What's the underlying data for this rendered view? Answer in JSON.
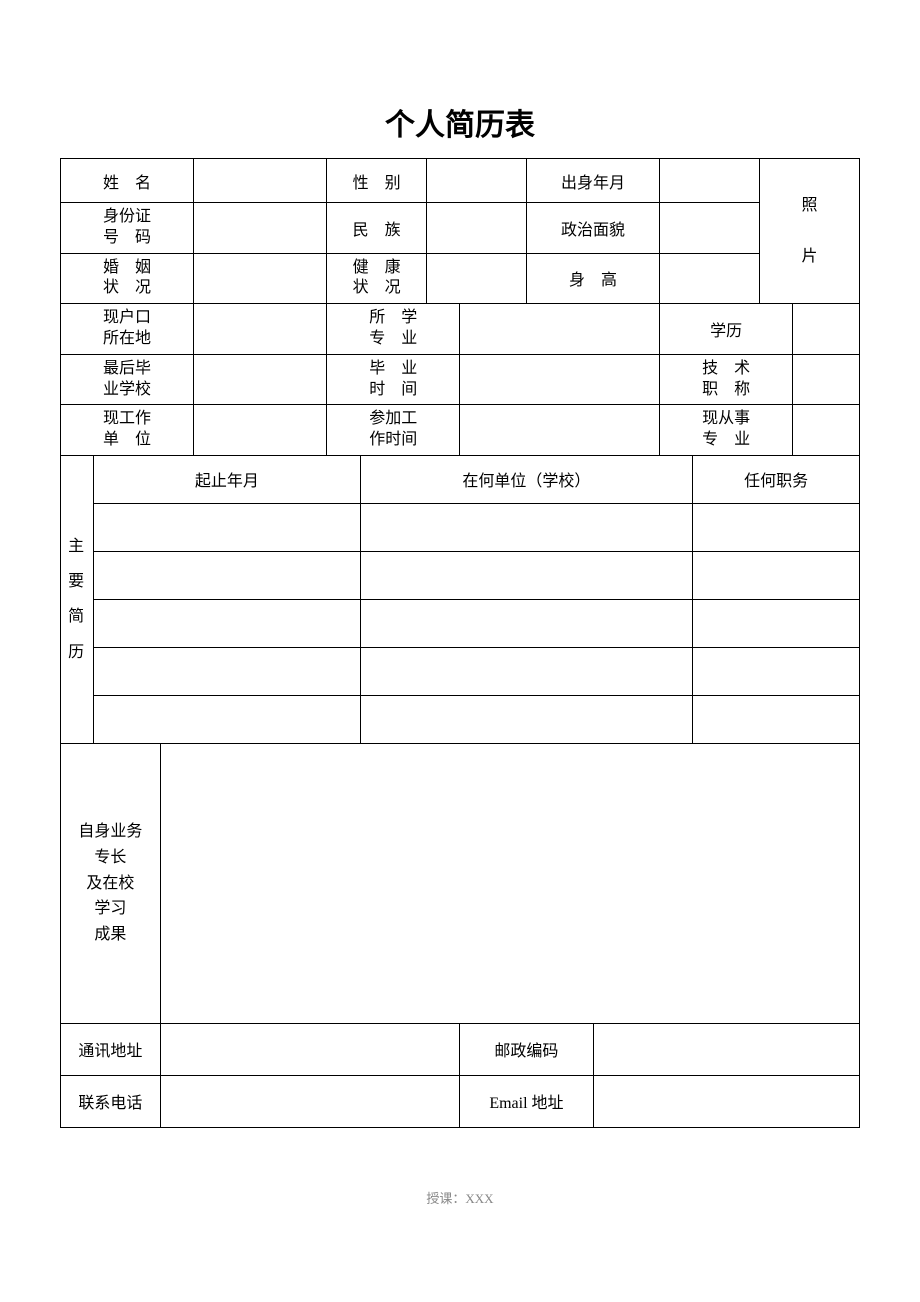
{
  "title": "个人简历表",
  "labels": {
    "name": "姓　名",
    "gender": "性　别",
    "birthdate": "出身年月",
    "photo1": "照",
    "photo2": "片",
    "idnumber": "身份证\n号　码",
    "ethnicity": "民　族",
    "political": "政治面貌",
    "marital": "婚　姻\n状　况",
    "health": "健　康\n状　况",
    "height": "身　高",
    "hukou": "现户口\n所在地",
    "major": "所　学\n专　业",
    "education": "学历",
    "school": "最后毕\n业学校",
    "gradtime": "毕　业\n时　间",
    "techTitle": "技　术\n职　称",
    "workunit": "现工作\n单　位",
    "workstart": "参加工\n作时间",
    "curmajor": "现从事\n专　业",
    "history": "主\n要\n简\n历",
    "period": "起止年月",
    "whichunit": "在何单位（学校）",
    "position": "任何职务",
    "specialty": "自身业务\n专长\n及在校\n学习\n成果",
    "address": "通讯地址",
    "postcode": "邮政编码",
    "phone": "联系电话",
    "email": "Email 地址"
  },
  "values": {
    "name": "",
    "gender": "",
    "birthdate": "",
    "idnumber": "",
    "ethnicity": "",
    "political": "",
    "marital": "",
    "health": "",
    "height": "",
    "hukou": "",
    "major": "",
    "education": "",
    "school": "",
    "gradtime": "",
    "techTitle": "",
    "workunit": "",
    "workstart": "",
    "curmajor": "",
    "specialty": "",
    "address": "",
    "postcode": "",
    "phone": "",
    "email": ""
  },
  "history_rows": [
    {
      "period": "",
      "unit": "",
      "position": ""
    },
    {
      "period": "",
      "unit": "",
      "position": ""
    },
    {
      "period": "",
      "unit": "",
      "position": ""
    },
    {
      "period": "",
      "unit": "",
      "position": ""
    },
    {
      "period": "",
      "unit": "",
      "position": ""
    }
  ],
  "footer": "授课：XXX",
  "colors": {
    "border": "#000000",
    "text": "#000000",
    "footer": "#888888",
    "background": "#ffffff"
  },
  "layout": {
    "total_cols": 24,
    "font_size_body": 16,
    "font_size_title": 30,
    "table_width_pct": 100
  }
}
